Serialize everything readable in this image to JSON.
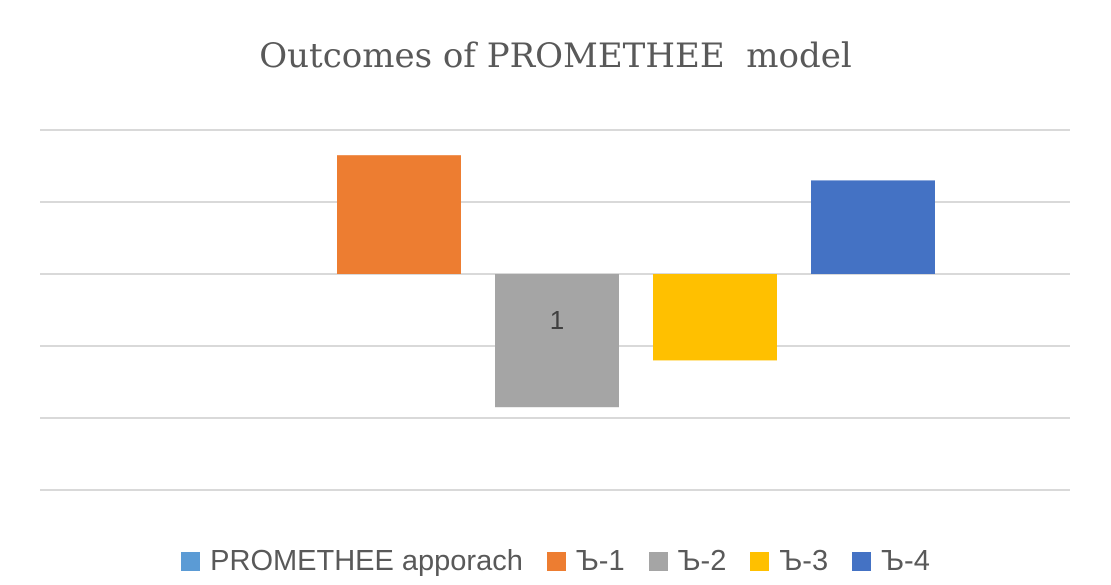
{
  "chart_data": {
    "type": "bar",
    "title": "Outcomes of PROMETHEE  model",
    "xlabel": "",
    "ylabel": "",
    "categories": [
      "PROMETHEE apporach"
    ],
    "series": [
      {
        "name": "PROMETHEE apporach",
        "color": "#5B9BD5",
        "values": [
          0
        ]
      },
      {
        "name": "Ъ-1",
        "color": "#ED7D31",
        "values": [
          0.33
        ]
      },
      {
        "name": "Ъ-2",
        "color": "#A5A5A5",
        "values": [
          -0.37
        ],
        "data_label": "1"
      },
      {
        "name": "Ъ-3",
        "color": "#FFC000",
        "values": [
          -0.24
        ]
      },
      {
        "name": "Ъ-4",
        "color": "#4472C4",
        "values": [
          0.26
        ]
      }
    ],
    "ylim": [
      -0.6,
      0.4
    ],
    "gridlines": [
      0.4,
      0.2,
      0,
      -0.2,
      -0.4,
      -0.6
    ],
    "grid": true,
    "axis_tick_labels_shown": false,
    "legend_position": "bottom"
  }
}
